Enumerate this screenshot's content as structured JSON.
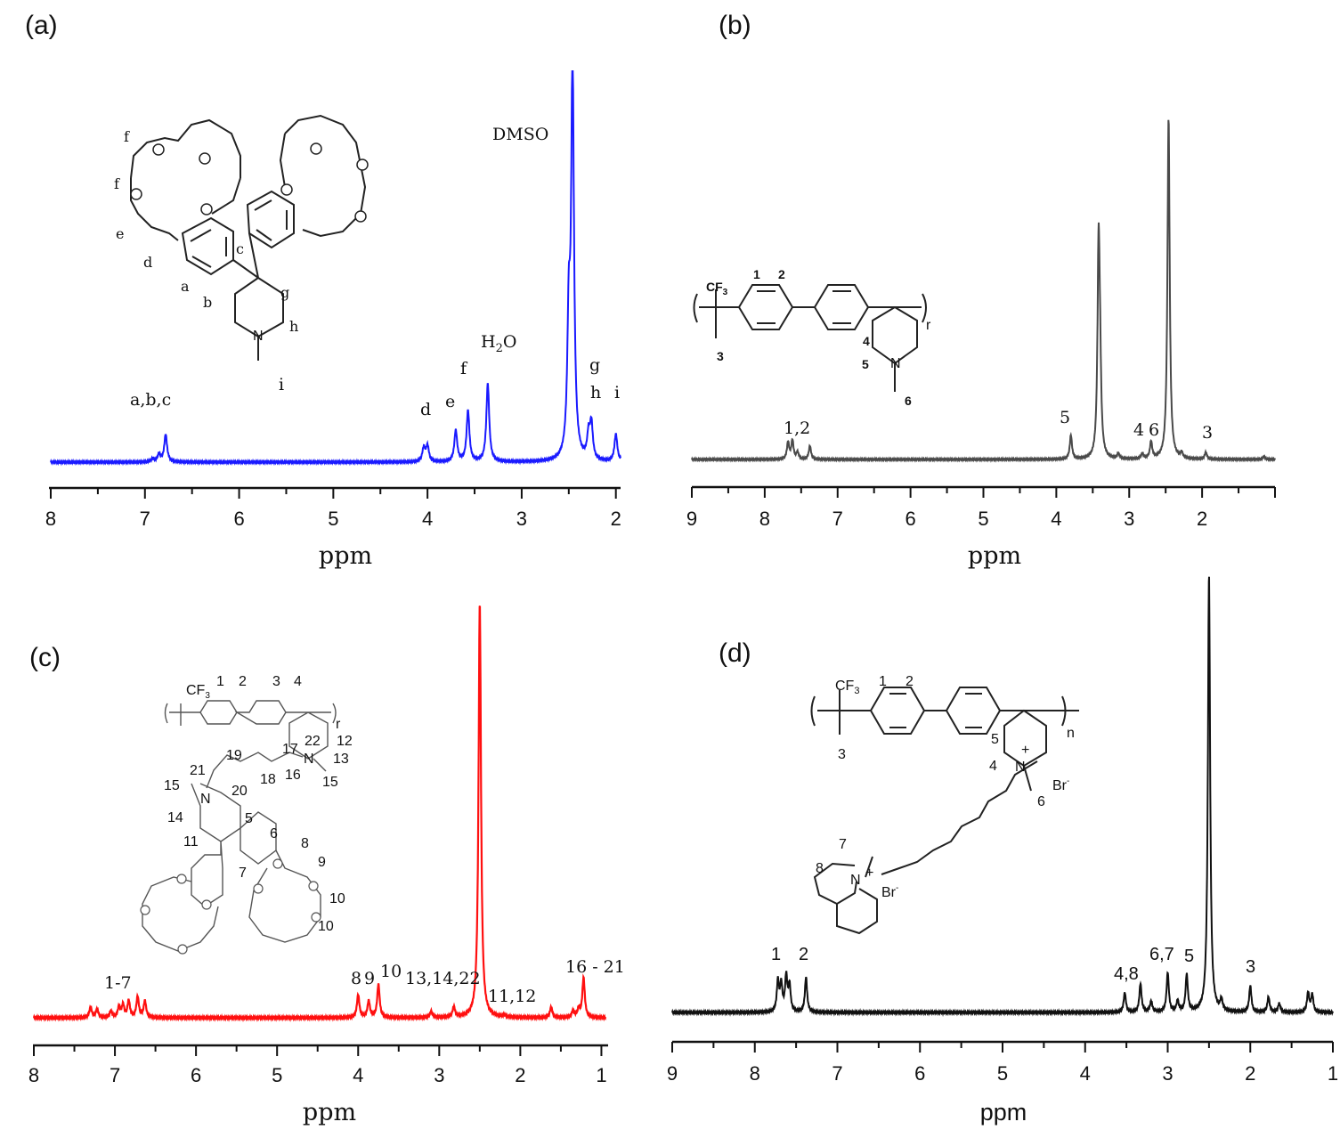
{
  "chart_data": [
    {
      "panel_label": "(a)",
      "type": "line",
      "xlabel": "ppm",
      "xlim": [
        8,
        1.95
      ],
      "x_reversed": true,
      "xticks": [
        "8",
        "7",
        "6",
        "5",
        "4",
        "3",
        "2"
      ],
      "line_color": "#1a1aff",
      "peaks": [
        {
          "ppm": 6.92,
          "height": 0.008
        },
        {
          "ppm": 6.85,
          "height": 0.02
        },
        {
          "ppm": 6.78,
          "height": 0.07
        },
        {
          "ppm": 4.04,
          "height": 0.035
        },
        {
          "ppm": 4.0,
          "height": 0.04
        },
        {
          "ppm": 3.7,
          "height": 0.08
        },
        {
          "ppm": 3.57,
          "height": 0.13
        },
        {
          "ppm": 3.36,
          "height": 0.2
        },
        {
          "ppm": 2.5,
          "height": 0.33
        },
        {
          "ppm": 2.46,
          "height": 1.0
        },
        {
          "ppm": 2.29,
          "height": 0.06
        },
        {
          "ppm": 2.26,
          "height": 0.09
        },
        {
          "ppm": 2.0,
          "height": 0.07
        }
      ],
      "annotations": [
        {
          "text": "a,b,c",
          "ppm": 6.8
        },
        {
          "text": "d",
          "ppm": 4.02
        },
        {
          "text": "e",
          "ppm": 3.72
        },
        {
          "text": "f",
          "ppm": 3.59
        },
        {
          "text": "g",
          "ppm": 2.27
        },
        {
          "text": "h",
          "ppm": 2.27
        },
        {
          "text": "i",
          "ppm": 2.0
        },
        {
          "text": "DMSO",
          "ppm": 2.9
        },
        {
          "text": "i",
          "ppm": 5.5
        }
      ],
      "structure_labels": [
        "f",
        "f",
        "e",
        "d",
        "a",
        "b",
        "c",
        "g",
        "h",
        "N",
        "O"
      ]
    },
    {
      "panel_label": "(b)",
      "type": "line",
      "xlabel": "ppm",
      "xlim": [
        9,
        1.0
      ],
      "x_reversed": true,
      "xticks": [
        "9",
        "8",
        "7",
        "6",
        "5",
        "4",
        "3",
        "2"
      ],
      "line_color": "#4a4a4a",
      "peaks": [
        {
          "ppm": 7.68,
          "height": 0.05
        },
        {
          "ppm": 7.62,
          "height": 0.055
        },
        {
          "ppm": 7.55,
          "height": 0.02
        },
        {
          "ppm": 7.38,
          "height": 0.04
        },
        {
          "ppm": 3.8,
          "height": 0.07
        },
        {
          "ppm": 3.42,
          "height": 0.6
        },
        {
          "ppm": 3.4,
          "height": 0.2
        },
        {
          "ppm": 3.15,
          "height": 0.015
        },
        {
          "ppm": 2.82,
          "height": 0.015
        },
        {
          "ppm": 2.7,
          "height": 0.05
        },
        {
          "ppm": 2.46,
          "height": 1.0
        },
        {
          "ppm": 2.28,
          "height": 0.015
        },
        {
          "ppm": 1.95,
          "height": 0.02
        },
        {
          "ppm": 1.15,
          "height": 0.008
        }
      ],
      "annotations": [
        {
          "text": "1,2",
          "ppm": 7.55
        },
        {
          "text": "5",
          "ppm": 3.85
        },
        {
          "text": "4",
          "ppm": 2.82
        },
        {
          "text": "6",
          "ppm": 2.65
        },
        {
          "text": "3",
          "ppm": 1.95
        }
      ],
      "structure_labels": [
        "CF3",
        "1",
        "2",
        "3",
        "4",
        "5",
        "N",
        "6",
        "r"
      ]
    },
    {
      "panel_label": "(c)",
      "type": "line",
      "xlabel": "ppm",
      "xlim": [
        8,
        0.95
      ],
      "x_reversed": true,
      "xticks": [
        "8",
        "7",
        "6",
        "5",
        "4",
        "3",
        "2",
        "1"
      ],
      "line_color": "#ff1010",
      "peaks": [
        {
          "ppm": 7.3,
          "height": 0.025
        },
        {
          "ppm": 7.22,
          "height": 0.02
        },
        {
          "ppm": 7.05,
          "height": 0.015
        },
        {
          "ppm": 6.95,
          "height": 0.025
        },
        {
          "ppm": 6.9,
          "height": 0.03
        },
        {
          "ppm": 6.83,
          "height": 0.04
        },
        {
          "ppm": 6.72,
          "height": 0.05
        },
        {
          "ppm": 6.63,
          "height": 0.04
        },
        {
          "ppm": 4.0,
          "height": 0.055
        },
        {
          "ppm": 3.87,
          "height": 0.04
        },
        {
          "ppm": 3.75,
          "height": 0.08
        },
        {
          "ppm": 3.1,
          "height": 0.015
        },
        {
          "ppm": 2.82,
          "height": 0.025
        },
        {
          "ppm": 2.5,
          "height": 1.0
        },
        {
          "ppm": 2.2,
          "height": 0.005
        },
        {
          "ppm": 1.62,
          "height": 0.025
        },
        {
          "ppm": 1.35,
          "height": 0.015
        },
        {
          "ppm": 1.28,
          "height": 0.02
        },
        {
          "ppm": 1.22,
          "height": 0.095
        }
      ],
      "annotations": [
        {
          "text": "1-7",
          "ppm": 6.95
        },
        {
          "text": "8",
          "ppm": 4.07
        },
        {
          "text": "9",
          "ppm": 3.9
        },
        {
          "text": "10",
          "ppm": 3.7
        },
        {
          "text": "13,14,22",
          "ppm": 3.05
        },
        {
          "text": "11,12",
          "ppm": 2.05
        },
        {
          "text": "16 - 21",
          "ppm": 1.25
        }
      ],
      "structure_labels": [
        "CF3",
        "1",
        "2",
        "3",
        "4",
        "12",
        "13",
        "15",
        "22",
        "17",
        "19",
        "21",
        "15",
        "20",
        "18",
        "16",
        "14",
        "11",
        "5",
        "6",
        "8",
        "7",
        "9",
        "10",
        "10",
        "N",
        "r"
      ]
    },
    {
      "panel_label": "(d)",
      "type": "line",
      "xlabel": "ppm",
      "xlim": [
        9,
        1.0
      ],
      "x_reversed": true,
      "xticks": [
        "9",
        "8",
        "7",
        "6",
        "5",
        "4",
        "3",
        "2",
        "1"
      ],
      "line_color": "#111111",
      "peaks": [
        {
          "ppm": 7.72,
          "height": 0.07
        },
        {
          "ppm": 7.68,
          "height": 0.06
        },
        {
          "ppm": 7.62,
          "height": 0.08
        },
        {
          "ppm": 7.58,
          "height": 0.06
        },
        {
          "ppm": 7.38,
          "height": 0.08
        },
        {
          "ppm": 3.52,
          "height": 0.045
        },
        {
          "ppm": 3.33,
          "height": 0.065
        },
        {
          "ppm": 3.2,
          "height": 0.025
        },
        {
          "ppm": 3.0,
          "height": 0.09
        },
        {
          "ppm": 2.88,
          "height": 0.025
        },
        {
          "ppm": 2.77,
          "height": 0.085
        },
        {
          "ppm": 2.5,
          "height": 1.0
        },
        {
          "ppm": 2.35,
          "height": 0.025
        },
        {
          "ppm": 2.0,
          "height": 0.06
        },
        {
          "ppm": 1.78,
          "height": 0.035
        },
        {
          "ppm": 1.65,
          "height": 0.02
        },
        {
          "ppm": 1.3,
          "height": 0.045
        },
        {
          "ppm": 1.25,
          "height": 0.04
        }
      ],
      "annotations": [
        {
          "text": "1",
          "ppm": 7.72
        },
        {
          "text": "2",
          "ppm": 7.38
        },
        {
          "text": "4,8",
          "ppm": 3.45
        },
        {
          "text": "6,7",
          "ppm": 3.0
        },
        {
          "text": "5",
          "ppm": 2.75
        },
        {
          "text": "3",
          "ppm": 2.0
        }
      ],
      "structure_labels": [
        "CF3",
        "1",
        "2",
        "3",
        "5",
        "4",
        "N",
        "+",
        "6",
        "Br-",
        "7",
        "8",
        "N",
        "+",
        "Br-",
        "n"
      ]
    }
  ]
}
